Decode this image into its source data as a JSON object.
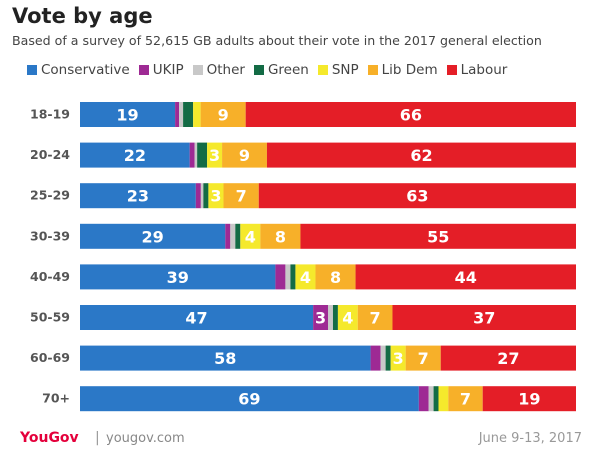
{
  "header": {
    "title": "Vote by age",
    "subtitle": "Based of a survey of 52,615 GB adults about their vote in the 2017 general election"
  },
  "footer": {
    "logo": "YouGov",
    "separator": "|",
    "url": "yougov.com",
    "date": "June 9-13, 2017"
  },
  "chart_data": {
    "type": "bar",
    "orientation": "horizontal",
    "stacked": true,
    "title": "Vote by age",
    "categories": [
      "18-19",
      "20-24",
      "25-29",
      "30-39",
      "40-49",
      "50-59",
      "60-69",
      "70+"
    ],
    "series": [
      {
        "name": "Conservative",
        "color": "#2b78c7",
        "values": [
          19,
          22,
          23,
          29,
          39,
          47,
          58,
          69
        ]
      },
      {
        "name": "UKIP",
        "color": "#9e2a94",
        "values": [
          0.8,
          1,
          1,
          1,
          2,
          3,
          2,
          2
        ]
      },
      {
        "name": "Other",
        "color": "#c8c8c8",
        "values": [
          0.8,
          0.5,
          0.5,
          1,
          1,
          1,
          1,
          1
        ]
      },
      {
        "name": "Green",
        "color": "#136b45",
        "values": [
          2,
          2,
          1,
          1,
          1,
          1,
          1,
          1
        ]
      },
      {
        "name": "SNP",
        "color": "#f5e92c",
        "values": [
          1.5,
          3,
          3,
          4,
          4,
          4,
          3,
          2
        ]
      },
      {
        "name": "Lib Dem",
        "color": "#f7b029",
        "values": [
          9,
          9,
          7,
          8,
          8,
          7,
          7,
          7
        ]
      },
      {
        "name": "Labour",
        "color": "#e41e27",
        "values": [
          66,
          62,
          63,
          55,
          44,
          37,
          27,
          19
        ]
      }
    ],
    "data_labels": [
      [
        "19",
        "",
        "",
        "",
        "",
        "9",
        "66"
      ],
      [
        "22",
        "",
        "",
        "",
        "3",
        "9",
        "62"
      ],
      [
        "23",
        "",
        "",
        "",
        "3",
        "7",
        "63"
      ],
      [
        "29",
        "",
        "",
        "",
        "4",
        "8",
        "55"
      ],
      [
        "39",
        "",
        "",
        "",
        "4",
        "8",
        "44"
      ],
      [
        "47",
        "3",
        "",
        "",
        "4",
        "7",
        "37"
      ],
      [
        "58",
        "",
        "",
        "",
        "3",
        "7",
        "27"
      ],
      [
        "69",
        "",
        "",
        "",
        "",
        "7",
        "19"
      ]
    ],
    "xlim": [
      0,
      100
    ],
    "grid": false,
    "legend_position": "top"
  }
}
